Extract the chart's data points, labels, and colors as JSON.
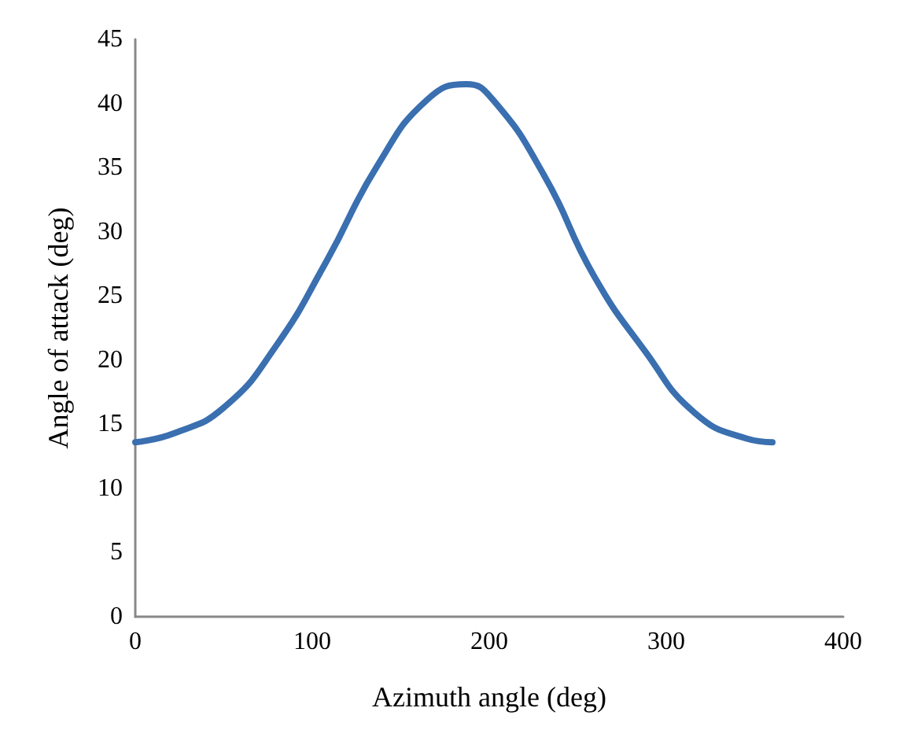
{
  "chart_data": {
    "type": "line",
    "xlabel": "Azimuth angle (deg)",
    "ylabel": "Angle of attack (deg)",
    "x": [
      0,
      22,
      50,
      79,
      108,
      137,
      165,
      187,
      202,
      231,
      259,
      288,
      316,
      345,
      360
    ],
    "series": [
      {
        "color": "#3a6fb0",
        "values": [
          13.6,
          14.3,
          16.3,
          21.0,
          27.7,
          35.2,
          40.3,
          41.5,
          40.3,
          34.4,
          26.6,
          20.7,
          15.9,
          13.9,
          13.6
        ]
      }
    ],
    "xlim": [
      0,
      400
    ],
    "xticks": [
      0,
      100,
      200,
      300,
      400
    ],
    "ylim": [
      0,
      45
    ],
    "yticks": [
      0,
      5,
      10,
      15,
      20,
      25,
      30,
      35,
      40,
      45
    ],
    "grid": false,
    "marker": "none",
    "line_style": "solid"
  }
}
